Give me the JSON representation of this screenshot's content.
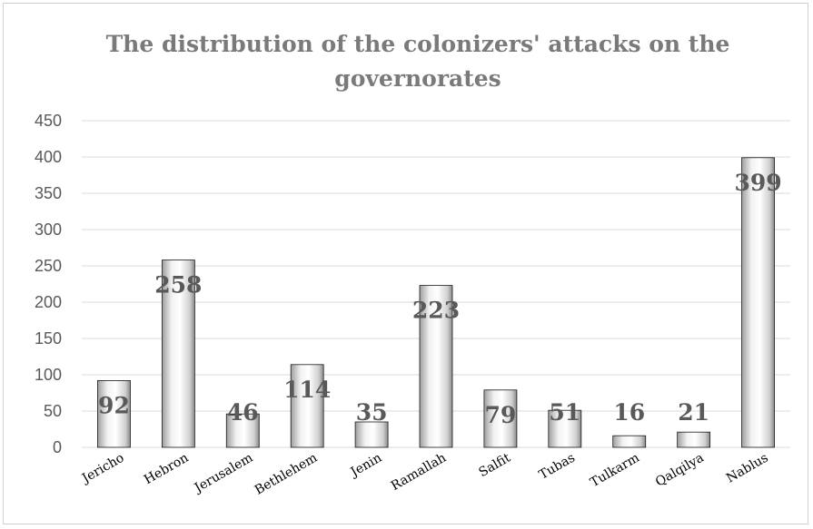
{
  "chart_data": {
    "type": "bar",
    "title": "The distribution of the colonizers' attacks on the governorates",
    "categories": [
      "Jericho",
      "Hebron",
      "Jerusalem",
      "Bethlehem",
      "Jenin",
      "Ramallah",
      "Salfit",
      "Tubas",
      "Tulkarm",
      "Qalqilya",
      "Nablus"
    ],
    "values": [
      92,
      258,
      46,
      114,
      35,
      223,
      79,
      51,
      16,
      21,
      399
    ],
    "data_labels": [
      "92",
      "258",
      "46",
      "114",
      "35",
      "223",
      "79",
      "51",
      "16",
      "21",
      "399"
    ],
    "ylim": [
      0,
      450
    ],
    "yticks": [
      "0",
      "50",
      "100",
      "150",
      "200",
      "250",
      "300",
      "350",
      "400",
      "450"
    ],
    "grid": true,
    "legend": "none",
    "colors": {
      "bar_light": "#ffffff",
      "bar_dark": "#bdbdbd",
      "grid": "#d9d9d9",
      "label": "#595959",
      "title": "#7a7a7a"
    }
  }
}
